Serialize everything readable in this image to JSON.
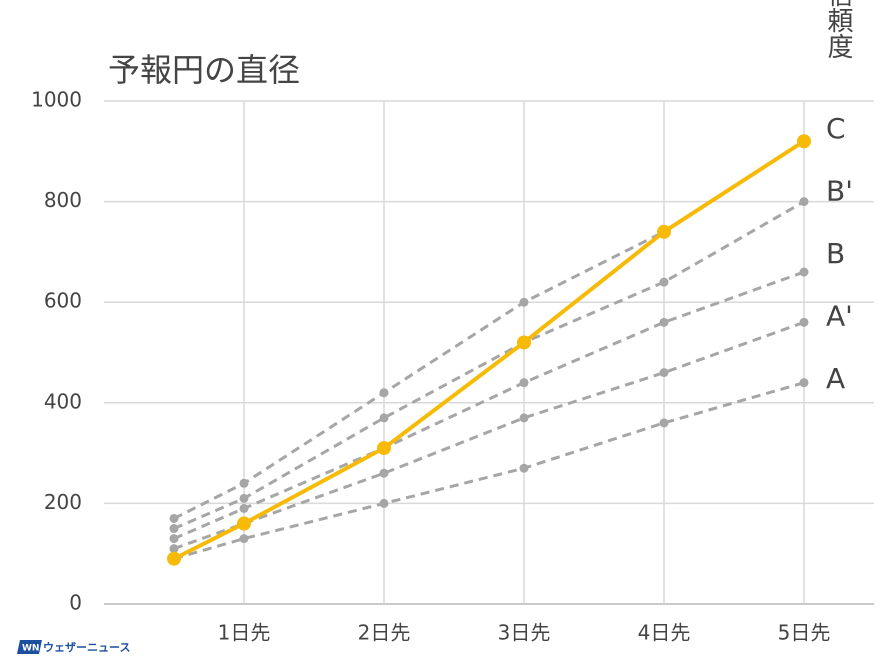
{
  "chart_data": {
    "type": "line",
    "title": "予報円の直径",
    "legend_title": "信頼度",
    "brand": "ウェザーニュース",
    "xlim": [
      0,
      5.5
    ],
    "xticks": [
      {
        "value": 1,
        "label": "1日先"
      },
      {
        "value": 2,
        "label": "2日先"
      },
      {
        "value": 3,
        "label": "3日先"
      },
      {
        "value": 4,
        "label": "4日先"
      },
      {
        "value": 5,
        "label": "5日先"
      }
    ],
    "ylim": [
      0,
      1000
    ],
    "yticks": [
      0,
      200,
      400,
      600,
      800,
      1000
    ],
    "grid": true,
    "x": [
      0.5,
      1,
      2,
      3,
      4,
      5
    ],
    "series": [
      {
        "color": "#a6a6a6",
        "dashed": true,
        "values": [
          170,
          240,
          420,
          600,
          740,
          null
        ]
      },
      {
        "name": "B'",
        "color": "#a6a6a6",
        "dashed": true,
        "values": [
          150,
          210,
          370,
          520,
          640,
          800
        ]
      },
      {
        "name": "B",
        "color": "#a6a6a6",
        "dashed": true,
        "values": [
          130,
          190,
          310,
          440,
          560,
          660
        ]
      },
      {
        "name": "A'",
        "color": "#a6a6a6",
        "dashed": true,
        "values": [
          110,
          160,
          260,
          370,
          460,
          560
        ]
      },
      {
        "name": "A",
        "color": "#a6a6a6",
        "dashed": true,
        "values": [
          90,
          130,
          200,
          270,
          360,
          440
        ]
      },
      {
        "name": "C",
        "color": "#f7bb07",
        "dashed": false,
        "values": [
          90,
          160,
          310,
          520,
          740,
          920
        ]
      }
    ]
  }
}
